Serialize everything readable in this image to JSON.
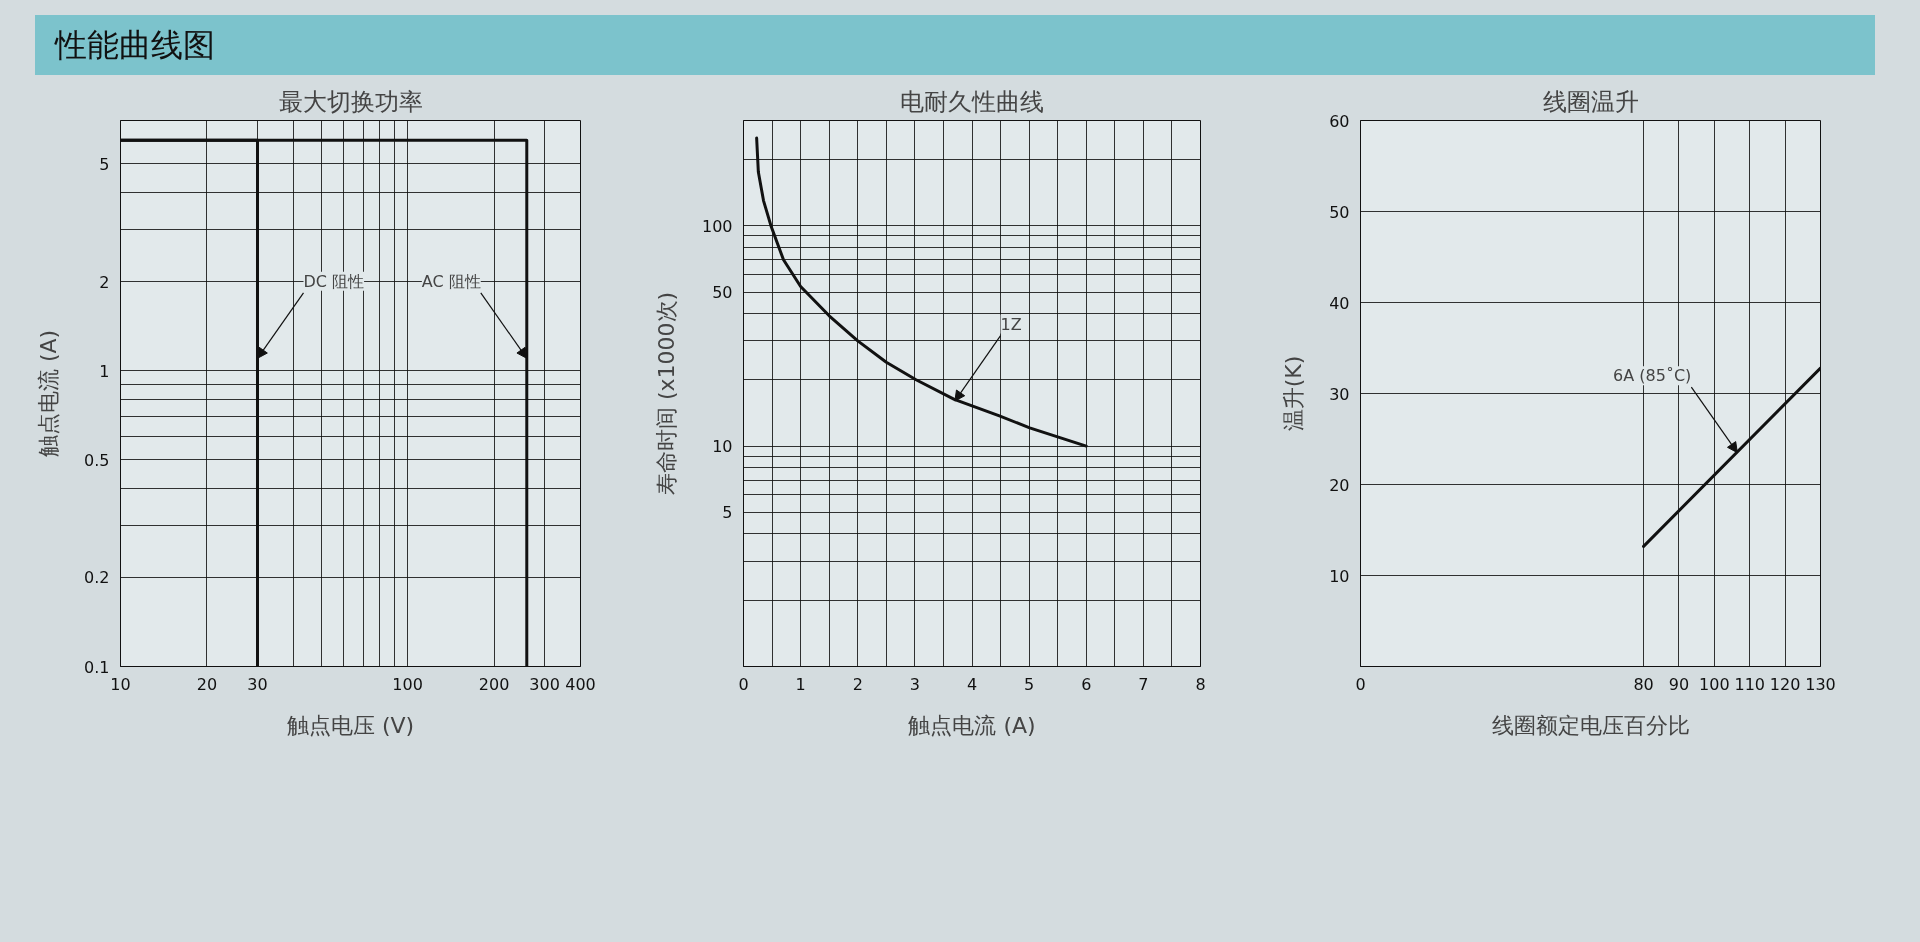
{
  "chart_data": [
    {
      "type": "line",
      "title": "最大切换功率",
      "xlabel": "触点电压 (V)",
      "ylabel": "触点电流 (A)",
      "log": "xy",
      "grid": true,
      "xlim": [
        10,
        400
      ],
      "ylim": [
        0.1,
        7
      ],
      "xticks": [
        10,
        20,
        30,
        {
          "value": 40,
          "label": null
        },
        {
          "value": 50,
          "label": null
        },
        {
          "value": 60,
          "label": null
        },
        {
          "value": 70,
          "label": null
        },
        {
          "value": 80,
          "label": null
        },
        {
          "value": 90,
          "label": null
        },
        100,
        200,
        300,
        400
      ],
      "yticks": [
        0.1,
        0.2,
        {
          "value": 0.3,
          "label": null
        },
        {
          "value": 0.4,
          "label": null
        },
        0.5,
        {
          "value": 0.6,
          "label": null
        },
        {
          "value": 0.7,
          "label": null
        },
        {
          "value": 0.8,
          "label": null
        },
        {
          "value": 0.9,
          "label": null
        },
        1,
        2,
        {
          "value": 3,
          "label": null
        },
        {
          "value": 4,
          "label": null
        },
        5
      ],
      "series": [
        {
          "color": "#111111",
          "x": [
            10,
            30,
            30
          ],
          "values": [
            6,
            6,
            0.1
          ]
        },
        {
          "color": "#111111",
          "x": [
            10,
            260,
            260
          ],
          "values": [
            6,
            6,
            0.1
          ]
        }
      ],
      "annotations": [
        "性能曲线图",
        {
          "text": "DC 阻性",
          "x": 30,
          "y": 1.1
        },
        {
          "text": "AC 阻性",
          "x": 260,
          "y": 1.1
        }
      ]
    },
    {
      "type": "line",
      "title": "电耐久性曲线",
      "xlabel": "触点电流 (A)",
      "ylabel": "寿命时间 (x1000次)",
      "log": "y",
      "grid": true,
      "xlim": [
        0,
        8
      ],
      "ylim": [
        1,
        300
      ],
      "xticks": [
        0,
        {
          "value": 0.5,
          "label": null
        },
        1,
        {
          "value": 1.5,
          "label": null
        },
        2,
        {
          "value": 2.5,
          "label": null
        },
        3,
        {
          "value": 3.5,
          "label": null
        },
        4,
        {
          "value": 4.5,
          "label": null
        },
        5,
        {
          "value": 5.5,
          "label": null
        },
        6,
        {
          "value": 6.5,
          "label": null
        },
        7,
        {
          "value": 7.5,
          "label": null
        },
        8
      ],
      "yticks": [
        {
          "value": 2,
          "label": null
        },
        {
          "value": 3,
          "label": null
        },
        {
          "value": 4,
          "label": null
        },
        5,
        {
          "value": 6,
          "label": null
        },
        {
          "value": 7,
          "label": null
        },
        {
          "value": 8,
          "label": null
        },
        {
          "value": 9,
          "label": null
        },
        10,
        {
          "value": 20,
          "label": null
        },
        {
          "value": 30,
          "label": null
        },
        {
          "value": 40,
          "label": null
        },
        50,
        {
          "value": 60,
          "label": null
        },
        {
          "value": 70,
          "label": null
        },
        {
          "value": 80,
          "label": null
        },
        {
          "value": 90,
          "label": null
        },
        100,
        {
          "value": 200,
          "label": null
        }
      ],
      "series": [
        {
          "color": "#111111",
          "x": [
            0.23,
            0.26,
            0.35,
            0.48,
            0.7,
            1.0,
            1.5,
            2.0,
            2.5,
            3.02,
            3.69,
            4.48,
            5.01,
            6.0
          ],
          "values": [
            250,
            175,
            130,
            100,
            70,
            53,
            39,
            30,
            24,
            20,
            16.3,
            13.7,
            12.1,
            10
          ]
        }
      ],
      "annotations": [
        {
          "text": "1Z",
          "x": 3.7,
          "y": 16
        }
      ]
    },
    {
      "type": "line",
      "title": "线圈温升",
      "xlabel": "线圈额定电压百分比",
      "ylabel": "温升(K)",
      "grid": true,
      "xlim": [
        0,
        130
      ],
      "ylim": [
        0,
        60
      ],
      "xticks": [
        0,
        80,
        90,
        100,
        110,
        120,
        130
      ],
      "yticks": [
        {
          "value": 0,
          "label": null
        },
        10,
        20,
        30,
        40,
        50,
        60
      ],
      "series": [
        {
          "color": "#111111",
          "x": [
            80,
            130
          ],
          "values": [
            13.2,
            32.8
          ]
        }
      ],
      "annotations": [
        {
          "text": "6A (85˚C)",
          "x": 106.5,
          "y": 23.5
        }
      ]
    }
  ]
}
